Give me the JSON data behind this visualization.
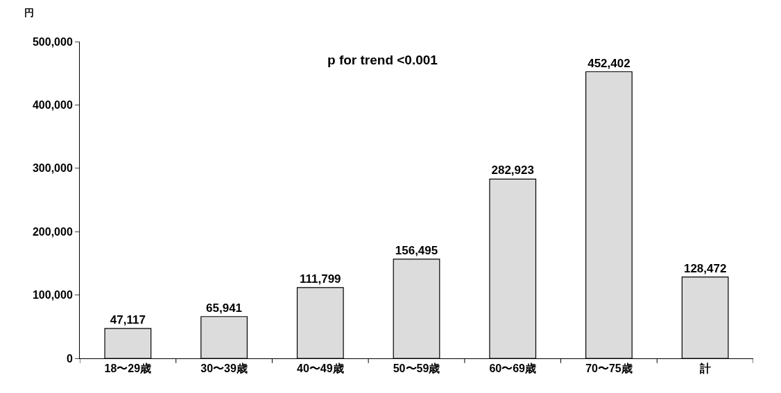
{
  "chart_data": {
    "type": "bar",
    "ylabel": "円",
    "categories": [
      "18〜29歳",
      "30〜39歳",
      "40〜49歳",
      "50〜59歳",
      "60〜69歳",
      "70〜75歳",
      "計"
    ],
    "values": [
      47117,
      65941,
      111799,
      156495,
      282923,
      452402,
      128472
    ],
    "value_labels": [
      "47,117",
      "65,941",
      "111,799",
      "156,495",
      "282,923",
      "452,402",
      "128,472"
    ],
    "color": "#dcdcdc",
    "ylim": [
      0,
      500000
    ],
    "yticks": [
      0,
      {
        "value": 100000,
        "label": "100,000"
      },
      {
        "value": 200000,
        "label": "200,000"
      },
      {
        "value": 300000,
        "label": "300,000"
      },
      {
        "value": 400000,
        "label": "400,000"
      },
      {
        "value": 500000,
        "label": "500,000"
      }
    ],
    "annotations": [
      "p for trend <0.001"
    ]
  }
}
